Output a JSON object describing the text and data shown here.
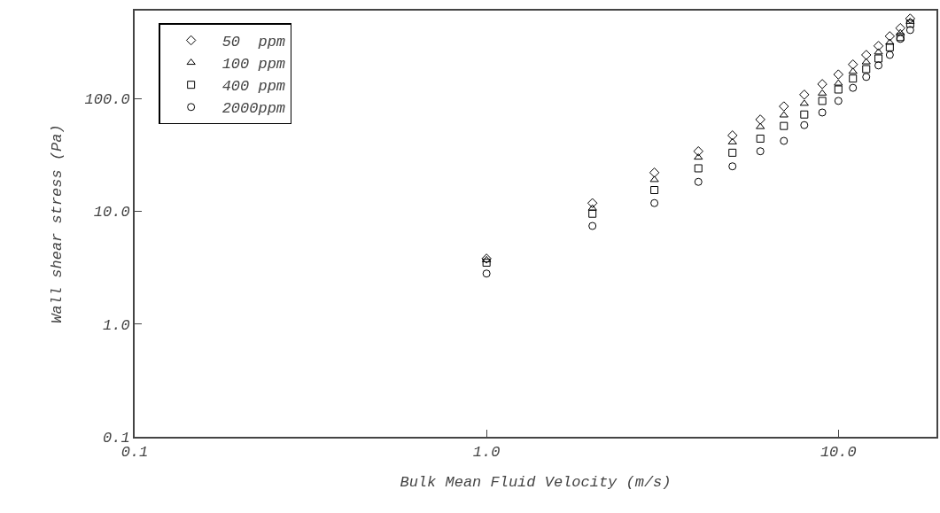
{
  "chart_data": {
    "type": "scatter",
    "xlabel": "Bulk Mean Fluid Velocity (m/s)",
    "ylabel": "Wall shear stress (Pa)",
    "log": "xy",
    "grid": false,
    "legend": "top left",
    "x": [
      1,
      2,
      3,
      4,
      5,
      6,
      7,
      8,
      9,
      10,
      11,
      12,
      13,
      14,
      15,
      16
    ],
    "xlim": [
      0.1,
      19
    ],
    "xticks": [
      {
        "value": 0.1,
        "label": "0.1"
      },
      {
        "value": 1,
        "label": "1.0"
      },
      {
        "value": 10,
        "label": "10.0"
      }
    ],
    "ylim": [
      0.1,
      600
    ],
    "yticks": [
      {
        "value": 0.1,
        "label": "0.1"
      },
      {
        "value": 1,
        "label": "1.0"
      },
      {
        "value": 10,
        "label": "10.0"
      },
      {
        "value": 100,
        "label": "100.0"
      }
    ],
    "series": [
      {
        "name": "50  ppm",
        "color": "#000000",
        "marker": "diamond",
        "values": [
          3.8,
          11.8,
          22,
          34,
          47,
          65,
          85,
          108,
          134,
          163,
          200,
          243,
          292,
          356,
          420,
          510
        ]
      },
      {
        "name": "100 ppm",
        "color": "#000000",
        "marker": "triangle",
        "values": [
          3.7,
          10.6,
          19,
          30,
          41,
          56,
          71,
          90,
          111,
          136,
          173,
          210,
          257,
          313,
          380,
          480
        ]
      },
      {
        "name": "400 ppm",
        "color": "#000000",
        "marker": "square",
        "values": [
          3.5,
          9.5,
          15.4,
          24,
          33,
          44,
          57,
          72,
          95,
          120,
          150,
          182,
          226,
          284,
          350,
          460
        ]
      },
      {
        "name": "2000ppm",
        "color": "#000000",
        "marker": "circle",
        "values": [
          2.8,
          7.4,
          11.8,
          18.2,
          25,
          34,
          42,
          58,
          75,
          95,
          124,
          155,
          196,
          243,
          337,
          404
        ]
      }
    ]
  }
}
